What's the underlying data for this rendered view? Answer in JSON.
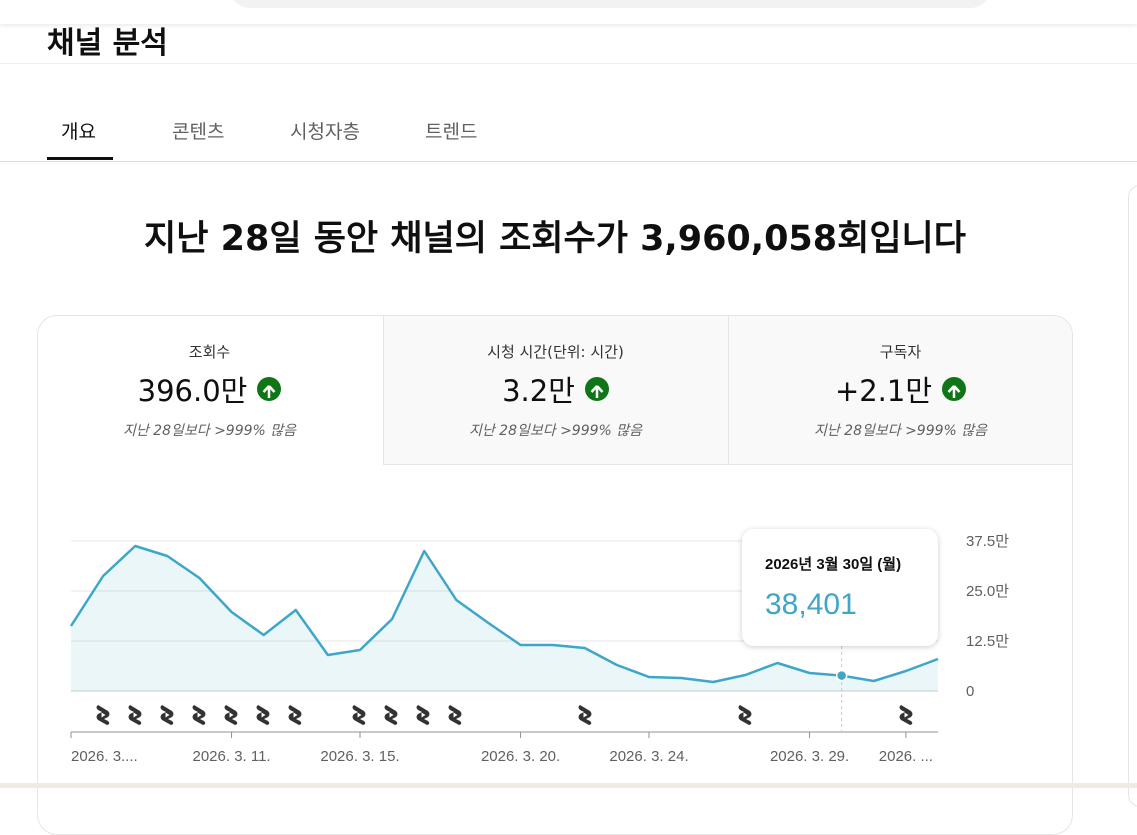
{
  "header": {
    "title": "채널 분석"
  },
  "tabs": [
    "개요",
    "콘텐츠",
    "시청자층",
    "트렌드"
  ],
  "headline": "지난 28일 동안 채널의 조회수가 3,960,058회입니다",
  "metrics": [
    {
      "label": "조회수",
      "value": "396.0만",
      "change": "지난 28일보다 >999% 많음"
    },
    {
      "label": "시청 시간(단위: 시간)",
      "value": "3.2만",
      "change": "지난 28일보다 >999% 많음"
    },
    {
      "label": "구독자",
      "value": "+2.1만",
      "change": "지난 28일보다 >999% 많음"
    }
  ],
  "chart_data": {
    "type": "area",
    "categories": [
      "2026. 3....",
      null,
      null,
      null,
      null,
      "2026. 3. 11.",
      null,
      null,
      null,
      "2026. 3. 15.",
      null,
      null,
      null,
      null,
      "2026. 3. 20.",
      null,
      null,
      null,
      "2026. 3. 24.",
      null,
      null,
      null,
      null,
      "2026. 3. 29.",
      null,
      null,
      "2026. ...",
      null
    ],
    "values": [
      162500,
      287500,
      362500,
      337500,
      282500,
      197500,
      140000,
      202500,
      90000,
      102500,
      180000,
      350000,
      227500,
      170000,
      115000,
      115000,
      107500,
      65000,
      35000,
      32500,
      22500,
      40000,
      70000,
      45000,
      38401,
      25000,
      50000,
      80000
    ],
    "color": "#3ea6c9",
    "ylim": [
      0,
      375000
    ],
    "yticks": [
      0,
      {
        "value": 125000,
        "label": "12.5만"
      },
      {
        "value": 250000,
        "label": "25.0만"
      },
      {
        "value": 375000,
        "label": "37.5만"
      }
    ],
    "grid": true,
    "tooltip": {
      "date": "2026년 3월 30일 (월)",
      "value": "38,401"
    }
  }
}
